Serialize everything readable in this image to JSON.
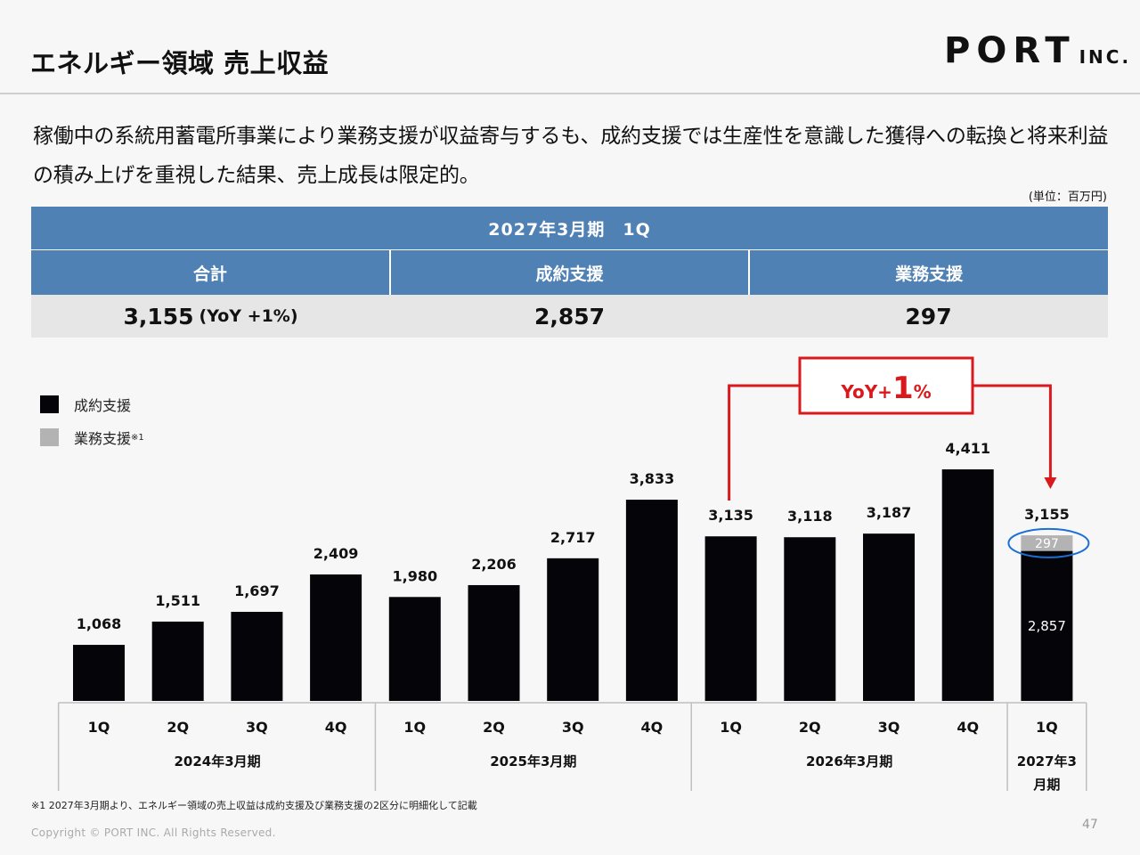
{
  "header": {
    "title": "エネルギー領域 売上収益",
    "logo_main": "PORT",
    "logo_sub": "INC."
  },
  "lead_text": "稼働中の系統用蓄電所事業により業務支援が収益寄与するも、成約支援では生産性を意識した獲得への転換と将来利益の積み上げを重視した結果、売上成長は限定的。",
  "unit_label": "(単位：百万円)",
  "summary_table": {
    "period": "2027年3月期　1Q",
    "headers": [
      "合計",
      "成約支援",
      "業務支援"
    ],
    "total_value": "3,155",
    "total_yoy": "(YoY +1%)",
    "contract_value": "2,857",
    "business_value": "297"
  },
  "legend": {
    "series1": "成約支援",
    "series2": "業務支援",
    "series2_note": "※1"
  },
  "chart_data": {
    "type": "bar",
    "categories": [
      "1Q",
      "2Q",
      "3Q",
      "4Q",
      "1Q",
      "2Q",
      "3Q",
      "4Q",
      "1Q",
      "2Q",
      "3Q",
      "4Q",
      "1Q"
    ],
    "category_groups": [
      {
        "label": "2024年3月期",
        "count": 4
      },
      {
        "label": "2025年3月期",
        "count": 4
      },
      {
        "label": "2026年3月期",
        "count": 4
      },
      {
        "label": "2027年3月期",
        "count": 1
      }
    ],
    "series": [
      {
        "name": "成約支援",
        "color": "#050509",
        "values": [
          1068,
          1511,
          1697,
          2409,
          1980,
          2206,
          2717,
          3833,
          3135,
          3118,
          3187,
          4411,
          2857
        ]
      },
      {
        "name": "業務支援",
        "color": "#b3b3b3",
        "values": [
          0,
          0,
          0,
          0,
          0,
          0,
          0,
          0,
          0,
          0,
          0,
          0,
          297
        ]
      }
    ],
    "total_labels": [
      "1,068",
      "1,511",
      "1,697",
      "2,409",
      "1,980",
      "2,206",
      "2,717",
      "3,833",
      "3,135",
      "3,118",
      "3,187",
      "4,411",
      "3,155"
    ],
    "segment_labels": {
      "contract": "2,857",
      "business": "297"
    },
    "stacked": true,
    "ylim": [
      0,
      4411
    ],
    "grid": false,
    "legend_position": "top-left",
    "annotation": {
      "text_prefix": "YoY+",
      "text_value": "1",
      "text_suffix": "%",
      "color": "#d9191c"
    }
  },
  "footnote": "※1 2027年3月期より、エネルギー領域の売上収益は成約支援及び業務支援の2区分に明細化して記載",
  "copyright": "Copyright © PORT INC. All Rights Reserved.",
  "page_number": "47"
}
